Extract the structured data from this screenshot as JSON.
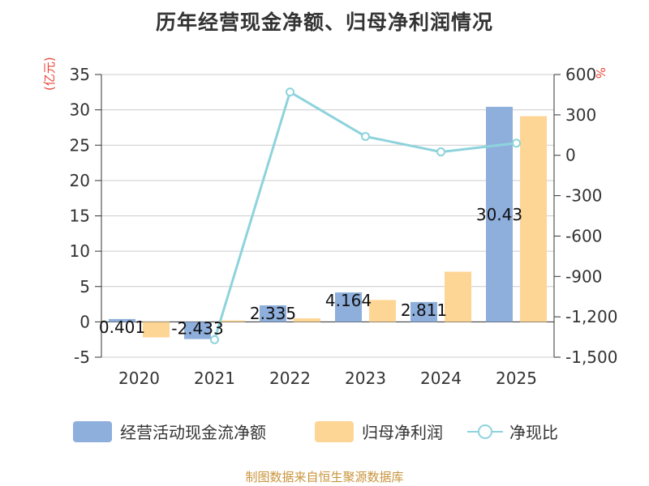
{
  "chart_data": {
    "type": "bar",
    "title": "历年经营现金净额、归母净利润情况",
    "ylabel_left": "(亿元)",
    "ylabel_right": "%",
    "categories": [
      "2020",
      "2021",
      "2022",
      "2023",
      "2024",
      "2025"
    ],
    "ylim_left": [
      -5,
      35
    ],
    "yticks_left": [
      "35",
      "30",
      "25",
      "20",
      "15",
      "10",
      "5",
      "0",
      "-5"
    ],
    "ylim_right": [
      -1500,
      600
    ],
    "yticks_right": [
      "600",
      "300",
      "0",
      "-300",
      "-600",
      "-900",
      "-1,200",
      "-1,500"
    ],
    "series": [
      {
        "name": "经营活动现金流净额",
        "type": "bar",
        "axis": "left",
        "color": "#8eaedc",
        "values": [
          0.401,
          -2.433,
          2.335,
          4.164,
          2.811,
          30.43
        ],
        "labels": [
          "0.401",
          "-2.433",
          "2.335",
          "4.164",
          "2.811",
          "30.43"
        ]
      },
      {
        "name": "归母净利润",
        "type": "bar",
        "axis": "left",
        "color": "#fdd695",
        "values": [
          -2.2,
          0.2,
          0.5,
          3.1,
          7.1,
          29.1
        ]
      },
      {
        "name": "净现比",
        "type": "line",
        "axis": "right",
        "color": "#8ed3dc",
        "values": [
          null,
          -1370,
          470,
          140,
          25,
          90
        ]
      }
    ],
    "grid": true,
    "legend_position": "bottom"
  },
  "legend": [
    {
      "label": "经营活动现金流净额"
    },
    {
      "label": "归母净利润"
    },
    {
      "label": "净现比"
    }
  ],
  "source": "制图数据来自恒生聚源数据库"
}
